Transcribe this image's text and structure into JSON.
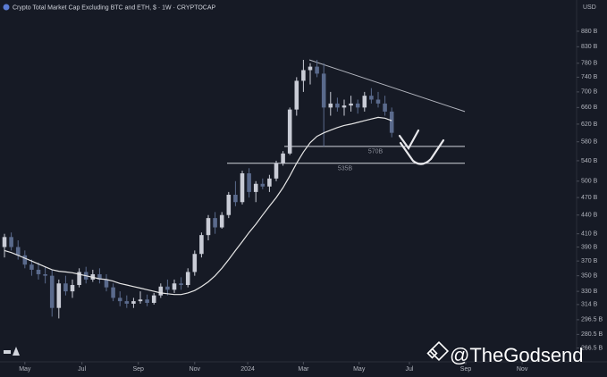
{
  "chart_data": {
    "type": "candlestick",
    "title": "Crypto Total Market Cap Excluding BTC and ETH, $ · 1W · CRYPTOCAP",
    "currency": "USD",
    "watermark": "@TheGodsend",
    "log_scale": true,
    "grid": false,
    "up_color": "#c9ccd6",
    "down_color": "#5a6a8c",
    "ma_color": "#e6e6e6",
    "xlim": [
      -0.66,
      83.95
    ],
    "xticks": [
      {
        "value": 3.0,
        "label": "May"
      },
      {
        "value": 11.4,
        "label": "Jul"
      },
      {
        "value": 19.7,
        "label": "Sep"
      },
      {
        "value": 28.0,
        "label": "Nov"
      },
      {
        "value": 35.8,
        "label": "2024"
      },
      {
        "value": 44.0,
        "label": "Mar"
      },
      {
        "value": 52.2,
        "label": "May"
      },
      {
        "value": 59.6,
        "label": "Jul"
      },
      {
        "value": 67.9,
        "label": "Sep"
      },
      {
        "value": 76.2,
        "label": "Nov"
      }
    ],
    "ylim": [
      253,
      990
    ],
    "yticks": [
      {
        "value": 880,
        "label": "880 B"
      },
      {
        "value": 830,
        "label": "830 B"
      },
      {
        "value": 780,
        "label": "780 B"
      },
      {
        "value": 740,
        "label": "740 B"
      },
      {
        "value": 700,
        "label": "700 B"
      },
      {
        "value": 660,
        "label": "660 B"
      },
      {
        "value": 620,
        "label": "620 B"
      },
      {
        "value": 580,
        "label": "580 B"
      },
      {
        "value": 540,
        "label": "540 B"
      },
      {
        "value": 500,
        "label": "500 B"
      },
      {
        "value": 470,
        "label": "470 B"
      },
      {
        "value": 440,
        "label": "440 B"
      },
      {
        "value": 410,
        "label": "410 B"
      },
      {
        "value": 390,
        "label": "390 B"
      },
      {
        "value": 370,
        "label": "370 B"
      },
      {
        "value": 350,
        "label": "350 B"
      },
      {
        "value": 330,
        "label": "330 B"
      },
      {
        "value": 314,
        "label": "314 B"
      },
      {
        "value": 296.5,
        "label": "296.5 B"
      },
      {
        "value": 280.5,
        "label": "280.5 B"
      },
      {
        "value": 266.5,
        "label": "266.5 B"
      }
    ],
    "open": [
      390,
      405,
      390,
      378,
      365,
      358,
      352,
      350,
      310,
      340,
      330,
      338,
      355,
      345,
      352,
      345,
      335,
      322,
      318,
      315,
      318,
      320,
      316,
      325,
      336,
      332,
      340,
      338,
      355,
      380,
      408,
      435,
      420,
      440,
      475,
      462,
      515,
      480,
      495,
      490,
      505,
      535,
      555,
      655,
      730,
      760,
      770,
      750,
      660,
      670,
      660,
      665,
      670,
      660,
      690,
      680,
      670,
      650
    ],
    "high": [
      410,
      412,
      400,
      385,
      372,
      368,
      362,
      358,
      345,
      350,
      345,
      360,
      362,
      358,
      360,
      352,
      340,
      330,
      325,
      322,
      330,
      326,
      328,
      340,
      345,
      345,
      348,
      360,
      385,
      412,
      440,
      445,
      445,
      480,
      500,
      520,
      525,
      500,
      505,
      512,
      540,
      560,
      660,
      740,
      790,
      780,
      790,
      780,
      700,
      685,
      680,
      690,
      680,
      700,
      710,
      700,
      690,
      660
    ],
    "low": [
      375,
      385,
      372,
      360,
      350,
      345,
      340,
      300,
      298,
      325,
      322,
      335,
      340,
      342,
      340,
      330,
      318,
      312,
      310,
      310,
      315,
      312,
      314,
      322,
      325,
      328,
      332,
      335,
      350,
      375,
      400,
      410,
      418,
      435,
      455,
      458,
      470,
      462,
      485,
      480,
      500,
      530,
      552,
      640,
      700,
      720,
      740,
      570,
      640,
      650,
      640,
      650,
      645,
      650,
      670,
      660,
      640,
      590
    ],
    "close": [
      405,
      390,
      378,
      365,
      358,
      352,
      350,
      310,
      340,
      330,
      338,
      355,
      345,
      352,
      345,
      335,
      322,
      318,
      315,
      318,
      320,
      316,
      325,
      336,
      332,
      340,
      338,
      355,
      380,
      408,
      435,
      420,
      440,
      475,
      462,
      515,
      480,
      495,
      490,
      505,
      535,
      555,
      655,
      730,
      760,
      770,
      750,
      660,
      670,
      660,
      665,
      670,
      660,
      690,
      680,
      670,
      650,
      600
    ],
    "ma": [
      385,
      382,
      378,
      374,
      370,
      366,
      362,
      358,
      356,
      355,
      354,
      352,
      350,
      348,
      346,
      345,
      343,
      340,
      338,
      336,
      334,
      332,
      330,
      328,
      327,
      326,
      326,
      328,
      331,
      336,
      342,
      350,
      360,
      372,
      385,
      398,
      412,
      425,
      440,
      455,
      470,
      488,
      510,
      535,
      558,
      578,
      592,
      600,
      606,
      612,
      617,
      620,
      624,
      628,
      632,
      636,
      634,
      628
    ],
    "levels": [
      {
        "value": 570,
        "label": "570B"
      },
      {
        "value": 535,
        "label": "535B"
      }
    ],
    "trendline": [
      790,
      650
    ]
  }
}
